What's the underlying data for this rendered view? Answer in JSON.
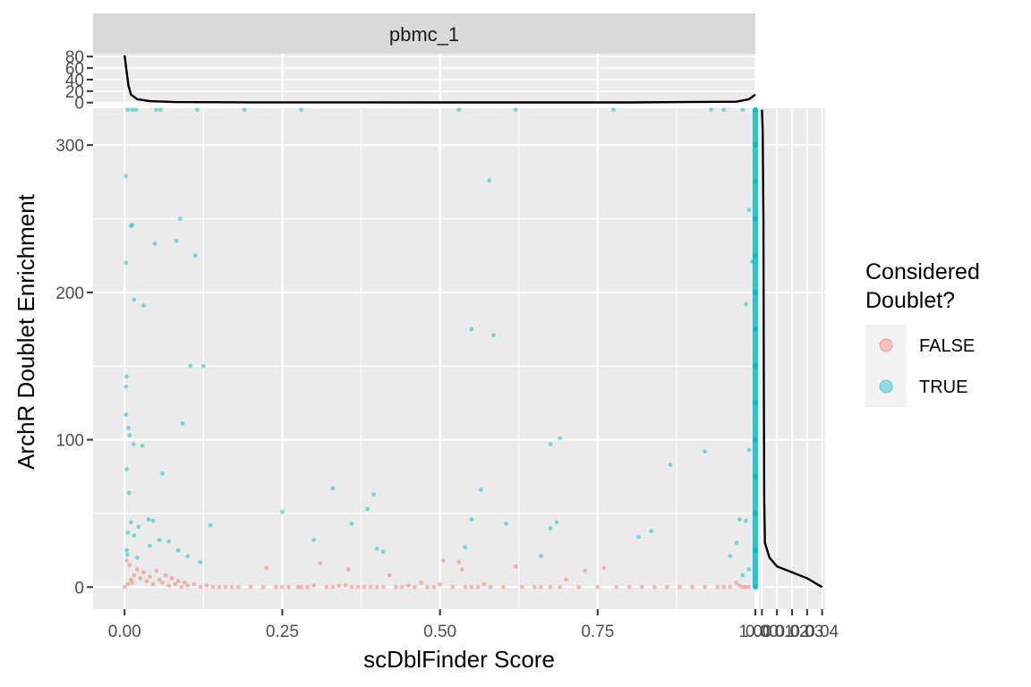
{
  "chart_data": {
    "type": "scatter",
    "facet_label": "pbmc_1",
    "xlabel": "scDblFinder Score",
    "ylabel": "ArchR Doublet Enrichment",
    "xlim": [
      -0.05,
      1.0
    ],
    "ylim": [
      -15,
      325
    ],
    "x_ticks": [
      0.0,
      0.25,
      0.5,
      0.75,
      1.0
    ],
    "x_tick_labels": [
      "0.00",
      "0.25",
      "0.50",
      "0.75",
      "1.00"
    ],
    "y_ticks": [
      0,
      100,
      200,
      300
    ],
    "y_tick_labels": [
      "0",
      "100",
      "200",
      "300"
    ],
    "grid": true,
    "legend": {
      "title_lines": [
        "Considered",
        "Doublet?"
      ],
      "placement": "right",
      "entries": [
        {
          "label": "FALSE",
          "color": "#F8766D"
        },
        {
          "label": "TRUE",
          "color": "#00BFC4"
        }
      ]
    },
    "series": [
      {
        "name": "FALSE",
        "color": "#F8766D",
        "points": [
          [
            0.0,
            0
          ],
          [
            0.005,
            2
          ],
          [
            0.01,
            5
          ],
          [
            0.015,
            8
          ],
          [
            0.02,
            12
          ],
          [
            0.003,
            18
          ],
          [
            0.008,
            15
          ],
          [
            0.012,
            3
          ],
          [
            0.025,
            6
          ],
          [
            0.03,
            10
          ],
          [
            0.035,
            4
          ],
          [
            0.04,
            7
          ],
          [
            0.045,
            2
          ],
          [
            0.05,
            11
          ],
          [
            0.055,
            5
          ],
          [
            0.06,
            3
          ],
          [
            0.065,
            8
          ],
          [
            0.07,
            1
          ],
          [
            0.075,
            6
          ],
          [
            0.08,
            2
          ],
          [
            0.085,
            4
          ],
          [
            0.09,
            0
          ],
          [
            0.095,
            3
          ],
          [
            0.1,
            1
          ],
          [
            0.11,
            2
          ],
          [
            0.12,
            0
          ],
          [
            0.13,
            1
          ],
          [
            0.14,
            0
          ],
          [
            0.15,
            0
          ],
          [
            0.16,
            0
          ],
          [
            0.17,
            0
          ],
          [
            0.18,
            0
          ],
          [
            0.2,
            0
          ],
          [
            0.22,
            0
          ],
          [
            0.225,
            13
          ],
          [
            0.24,
            0
          ],
          [
            0.25,
            0
          ],
          [
            0.26,
            0
          ],
          [
            0.275,
            0
          ],
          [
            0.28,
            0
          ],
          [
            0.29,
            0
          ],
          [
            0.3,
            1
          ],
          [
            0.31,
            16
          ],
          [
            0.32,
            0
          ],
          [
            0.33,
            0
          ],
          [
            0.34,
            1
          ],
          [
            0.35,
            1
          ],
          [
            0.355,
            12
          ],
          [
            0.36,
            0
          ],
          [
            0.37,
            0
          ],
          [
            0.38,
            0
          ],
          [
            0.39,
            0
          ],
          [
            0.4,
            0
          ],
          [
            0.41,
            0
          ],
          [
            0.42,
            8
          ],
          [
            0.43,
            0
          ],
          [
            0.44,
            0
          ],
          [
            0.45,
            1
          ],
          [
            0.46,
            0
          ],
          [
            0.47,
            3
          ],
          [
            0.48,
            0
          ],
          [
            0.49,
            0
          ],
          [
            0.5,
            2
          ],
          [
            0.505,
            18
          ],
          [
            0.52,
            0
          ],
          [
            0.53,
            17
          ],
          [
            0.535,
            12
          ],
          [
            0.54,
            0
          ],
          [
            0.55,
            0
          ],
          [
            0.56,
            0
          ],
          [
            0.57,
            2
          ],
          [
            0.58,
            0
          ],
          [
            0.6,
            0
          ],
          [
            0.62,
            14
          ],
          [
            0.63,
            0
          ],
          [
            0.65,
            0
          ],
          [
            0.66,
            0
          ],
          [
            0.675,
            0
          ],
          [
            0.69,
            0
          ],
          [
            0.7,
            5
          ],
          [
            0.72,
            0
          ],
          [
            0.73,
            11
          ],
          [
            0.75,
            0
          ],
          [
            0.76,
            13
          ],
          [
            0.78,
            0
          ],
          [
            0.8,
            0
          ],
          [
            0.82,
            0
          ],
          [
            0.84,
            0
          ],
          [
            0.86,
            0
          ],
          [
            0.88,
            0
          ],
          [
            0.9,
            0
          ],
          [
            0.92,
            0
          ],
          [
            0.94,
            0
          ],
          [
            0.95,
            0
          ],
          [
            0.96,
            0
          ],
          [
            0.97,
            3
          ],
          [
            0.975,
            1
          ],
          [
            0.98,
            0
          ],
          [
            0.985,
            0
          ],
          [
            0.99,
            0
          ]
        ]
      },
      {
        "name": "TRUE",
        "color": "#00BFC4",
        "points": [
          [
            0.005,
            324
          ],
          [
            0.012,
            324
          ],
          [
            0.018,
            324
          ],
          [
            0.05,
            324
          ],
          [
            0.057,
            324
          ],
          [
            0.115,
            324
          ],
          [
            0.19,
            324
          ],
          [
            0.28,
            324
          ],
          [
            0.53,
            324
          ],
          [
            0.62,
            324
          ],
          [
            0.775,
            324
          ],
          [
            0.93,
            324
          ],
          [
            0.95,
            324
          ],
          [
            0.98,
            324
          ],
          [
            0.002,
            279
          ],
          [
            0.578,
            276
          ],
          [
            0.01,
            245
          ],
          [
            0.012,
            246
          ],
          [
            0.088,
            250
          ],
          [
            0.082,
            235
          ],
          [
            0.048,
            233
          ],
          [
            0.112,
            225
          ],
          [
            0.002,
            220
          ],
          [
            0.015,
            195
          ],
          [
            0.03,
            191
          ],
          [
            0.55,
            175
          ],
          [
            0.585,
            171
          ],
          [
            0.104,
            150
          ],
          [
            0.125,
            150
          ],
          [
            0.003,
            143
          ],
          [
            0.002,
            136
          ],
          [
            0.002,
            117
          ],
          [
            0.006,
            108
          ],
          [
            0.092,
            111
          ],
          [
            0.008,
            103
          ],
          [
            0.014,
            97
          ],
          [
            0.028,
            96
          ],
          [
            0.69,
            101
          ],
          [
            0.675,
            97
          ],
          [
            0.865,
            83
          ],
          [
            0.92,
            92
          ],
          [
            0.003,
            80
          ],
          [
            0.06,
            77
          ],
          [
            0.007,
            64
          ],
          [
            0.33,
            67
          ],
          [
            0.395,
            63
          ],
          [
            0.565,
            66
          ],
          [
            0.25,
            51
          ],
          [
            0.385,
            53
          ],
          [
            0.55,
            46
          ],
          [
            0.605,
            43
          ],
          [
            0.36,
            43
          ],
          [
            0.038,
            46
          ],
          [
            0.045,
            45
          ],
          [
            0.01,
            44
          ],
          [
            0.022,
            41
          ],
          [
            0.136,
            42
          ],
          [
            0.005,
            37
          ],
          [
            0.015,
            35
          ],
          [
            0.055,
            32
          ],
          [
            0.07,
            31
          ],
          [
            0.3,
            32
          ],
          [
            0.04,
            28
          ],
          [
            0.085,
            25
          ],
          [
            0.4,
            26
          ],
          [
            0.41,
            24
          ],
          [
            0.54,
            27
          ],
          [
            0.835,
            38
          ],
          [
            0.815,
            34
          ],
          [
            0.685,
            44
          ],
          [
            0.66,
            21
          ],
          [
            0.1,
            21
          ],
          [
            0.12,
            17
          ],
          [
            0.003,
            25
          ],
          [
            0.004,
            22
          ],
          [
            0.02,
            20
          ],
          [
            0.975,
            46
          ],
          [
            0.985,
            45
          ],
          [
            0.96,
            21
          ],
          [
            0.99,
            93
          ],
          [
            0.985,
            192
          ],
          [
            0.99,
            256
          ],
          [
            0.995,
            221
          ],
          [
            0.97,
            30
          ],
          [
            0.99,
            12
          ],
          [
            0.98,
            8
          ],
          [
            0.675,
            40
          ]
        ],
        "vertical_band": {
          "x": 1.0,
          "y_range": [
            0,
            324
          ],
          "description_values": [
            0,
            25,
            50,
            75,
            100,
            125,
            150,
            175,
            200,
            225,
            250,
            275,
            300,
            324
          ]
        }
      }
    ],
    "marginal_top": {
      "y_ticks": [
        0,
        20,
        40,
        60,
        80
      ],
      "y_tick_labels": [
        "0",
        "20",
        "40",
        "60",
        "80"
      ],
      "ylim": [
        -2,
        85
      ],
      "density": [
        [
          0.0,
          82
        ],
        [
          0.003,
          55
        ],
        [
          0.006,
          30
        ],
        [
          0.01,
          14
        ],
        [
          0.02,
          6
        ],
        [
          0.04,
          2.5
        ],
        [
          0.08,
          1
        ],
        [
          0.2,
          0.5
        ],
        [
          0.5,
          0.3
        ],
        [
          0.8,
          0.4
        ],
        [
          0.97,
          1.5
        ],
        [
          0.99,
          6
        ],
        [
          1.0,
          14
        ]
      ]
    },
    "marginal_right": {
      "x_ticks": [
        0.0,
        0.01,
        0.02,
        0.03,
        0.04
      ],
      "x_tick_labels": [
        "0.00",
        "0.01",
        "0.02",
        "0.03",
        "0.04"
      ],
      "xlim": [
        -0.002,
        0.042
      ],
      "density": [
        [
          0,
          324
        ],
        [
          0.0005,
          310
        ],
        [
          0.001,
          250
        ],
        [
          0.0012,
          150
        ],
        [
          0.0015,
          60
        ],
        [
          0.002,
          30
        ],
        [
          0.005,
          20
        ],
        [
          0.01,
          14
        ],
        [
          0.02,
          10
        ],
        [
          0.03,
          6
        ],
        [
          0.04,
          0
        ]
      ]
    }
  }
}
